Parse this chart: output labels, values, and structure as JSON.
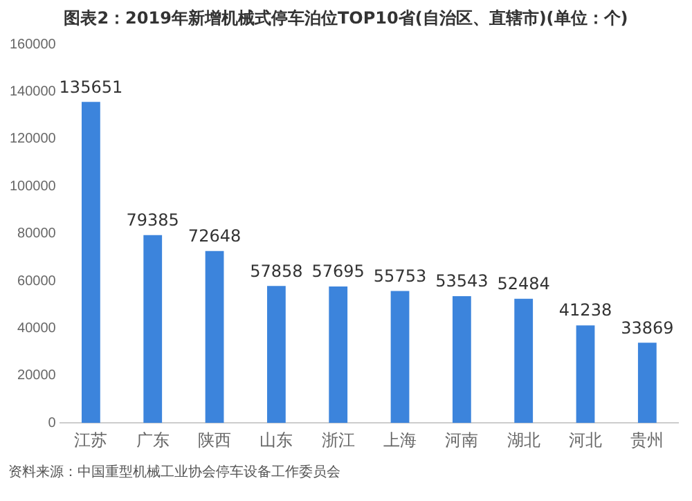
{
  "chart_data": {
    "type": "bar",
    "title": "图表2：2019年新增机械式停车泊位TOP10省(自治区、直辖市)(单位：个)",
    "categories": [
      "江苏",
      "广东",
      "陕西",
      "山东",
      "浙江",
      "上海",
      "河南",
      "湖北",
      "河北",
      "贵州"
    ],
    "values": [
      135651,
      79385,
      72648,
      57858,
      57695,
      55753,
      53543,
      52484,
      41238,
      33869
    ],
    "color": "#3c84dc",
    "ylim": [
      0,
      160000
    ],
    "yticks": [
      0,
      20000,
      40000,
      60000,
      80000,
      100000,
      120000,
      140000,
      160000
    ],
    "grid": false,
    "data_labels": true,
    "annotations": [
      "资料来源：中国重型机械工业协会停车设备工作委员会"
    ]
  }
}
